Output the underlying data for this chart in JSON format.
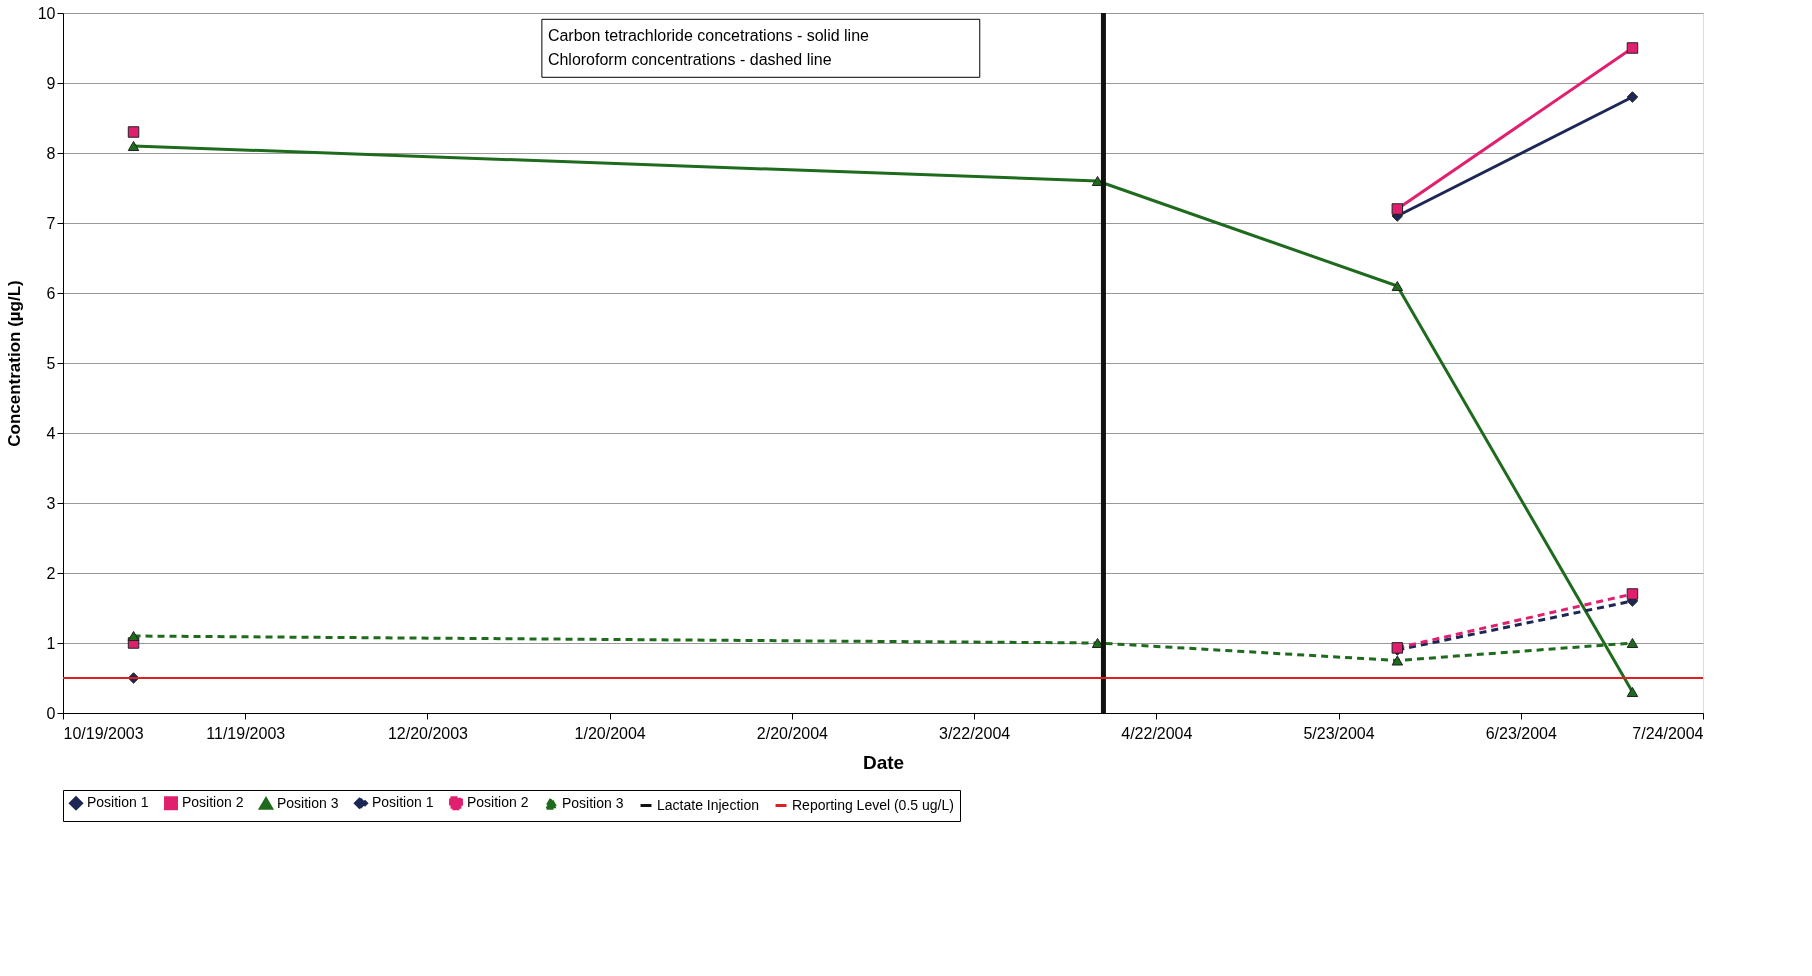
{
  "chart_data": {
    "type": "line",
    "xlabel": "Date",
    "ylabel": "Concentration (µg/L)",
    "x": [
      "2003-10-31",
      "2004-04-12",
      "2004-06-02",
      "2004-07-12"
    ],
    "series": [
      {
        "name": "Position 1",
        "color": "#1c2755",
        "marker": "diamond",
        "line_style": "solid",
        "values": [
          null,
          null,
          7.1,
          8.8
        ]
      },
      {
        "name": "Position 2",
        "color": "#e0206f",
        "marker": "square",
        "line_style": "solid",
        "values": [
          8.3,
          null,
          7.2,
          9.5
        ]
      },
      {
        "name": "Position 3",
        "color": "#1e6b1e",
        "marker": "triangle",
        "line_style": "solid",
        "values": [
          8.1,
          7.6,
          6.1,
          0.3
        ]
      },
      {
        "name": "Position 1",
        "color": "#1c2755",
        "marker": "diamond",
        "line_style": "dashed",
        "values": [
          0.5,
          null,
          0.9,
          1.6
        ]
      },
      {
        "name": "Position 2",
        "color": "#e0206f",
        "marker": "square",
        "line_style": "dashed",
        "values": [
          1.0,
          null,
          0.93,
          1.7
        ]
      },
      {
        "name": "Position 3",
        "color": "#1e6b1e",
        "marker": "triangle",
        "line_style": "dashed",
        "values": [
          1.1,
          1.0,
          0.75,
          1.0
        ]
      }
    ],
    "ref_lines": [
      {
        "axis": "x",
        "value": "2004-04-13",
        "label": "Lactate Injection",
        "color": "#111111",
        "line_style": "solid"
      },
      {
        "axis": "y",
        "value": 0.5,
        "label": "Reporting Level (0.5 ug/L)",
        "color": "#e02020",
        "line_style": "solid"
      }
    ],
    "annotations": [
      "Carbon tetrachloride concetrations - solid line",
      "Chloroform concentrations - dashed line"
    ],
    "xlim": [
      "2003-10-19",
      "2004-07-24"
    ],
    "xticks": [
      {
        "value": "2003-10-19",
        "label": "10/19/2003"
      },
      {
        "value": "2003-11-19",
        "label": "11/19/2003"
      },
      {
        "value": "2003-12-20",
        "label": "12/20/2003"
      },
      {
        "value": "2004-01-20",
        "label": "1/20/2004"
      },
      {
        "value": "2004-02-20",
        "label": "2/20/2004"
      },
      {
        "value": "2004-03-22",
        "label": "3/22/2004"
      },
      {
        "value": "2004-04-22",
        "label": "4/22/2004"
      },
      {
        "value": "2004-05-23",
        "label": "5/23/2004"
      },
      {
        "value": "2004-06-23",
        "label": "6/23/2004"
      },
      {
        "value": "2004-07-24",
        "label": "7/24/2004"
      }
    ],
    "ylim": [
      0,
      10
    ],
    "yticks": [
      0,
      1,
      2,
      3,
      4,
      5,
      6,
      7,
      8,
      9,
      10
    ],
    "grid": "y",
    "legend": "bottom"
  }
}
